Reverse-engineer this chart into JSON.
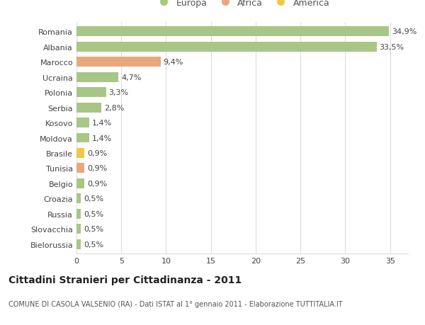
{
  "categories": [
    "Romania",
    "Albania",
    "Marocco",
    "Ucraina",
    "Polonia",
    "Serbia",
    "Kosovo",
    "Moldova",
    "Brasile",
    "Tunisia",
    "Belgio",
    "Croazia",
    "Russia",
    "Slovacchia",
    "Bielorussia"
  ],
  "values": [
    34.9,
    33.5,
    9.4,
    4.7,
    3.3,
    2.8,
    1.4,
    1.4,
    0.9,
    0.9,
    0.9,
    0.5,
    0.5,
    0.5,
    0.5
  ],
  "labels": [
    "34,9%",
    "33,5%",
    "9,4%",
    "4,7%",
    "3,3%",
    "2,8%",
    "1,4%",
    "1,4%",
    "0,9%",
    "0,9%",
    "0,9%",
    "0,5%",
    "0,5%",
    "0,5%",
    "0,5%"
  ],
  "colors": [
    "#a8c686",
    "#a8c686",
    "#e8a87c",
    "#a8c686",
    "#a8c686",
    "#a8c686",
    "#a8c686",
    "#a8c686",
    "#f0c848",
    "#e8a87c",
    "#a8c686",
    "#a8c686",
    "#a8c686",
    "#a8c686",
    "#a8c686"
  ],
  "legend_labels": [
    "Europa",
    "Africa",
    "America"
  ],
  "legend_colors": [
    "#a8c686",
    "#e8a87c",
    "#f0c848"
  ],
  "title": "Cittadini Stranieri per Cittadinanza - 2011",
  "subtitle": "COMUNE DI CASOLA VALSENIO (RA) - Dati ISTAT al 1° gennaio 2011 - Elaborazione TUTTITALIA.IT",
  "xlim": [
    0,
    37
  ],
  "xticks": [
    0,
    5,
    10,
    15,
    20,
    25,
    30,
    35
  ],
  "bg_color": "#ffffff",
  "grid_color": "#dddddd",
  "bar_height": 0.65,
  "label_fontsize": 8,
  "tick_fontsize": 8,
  "title_fontsize": 10,
  "subtitle_fontsize": 7
}
